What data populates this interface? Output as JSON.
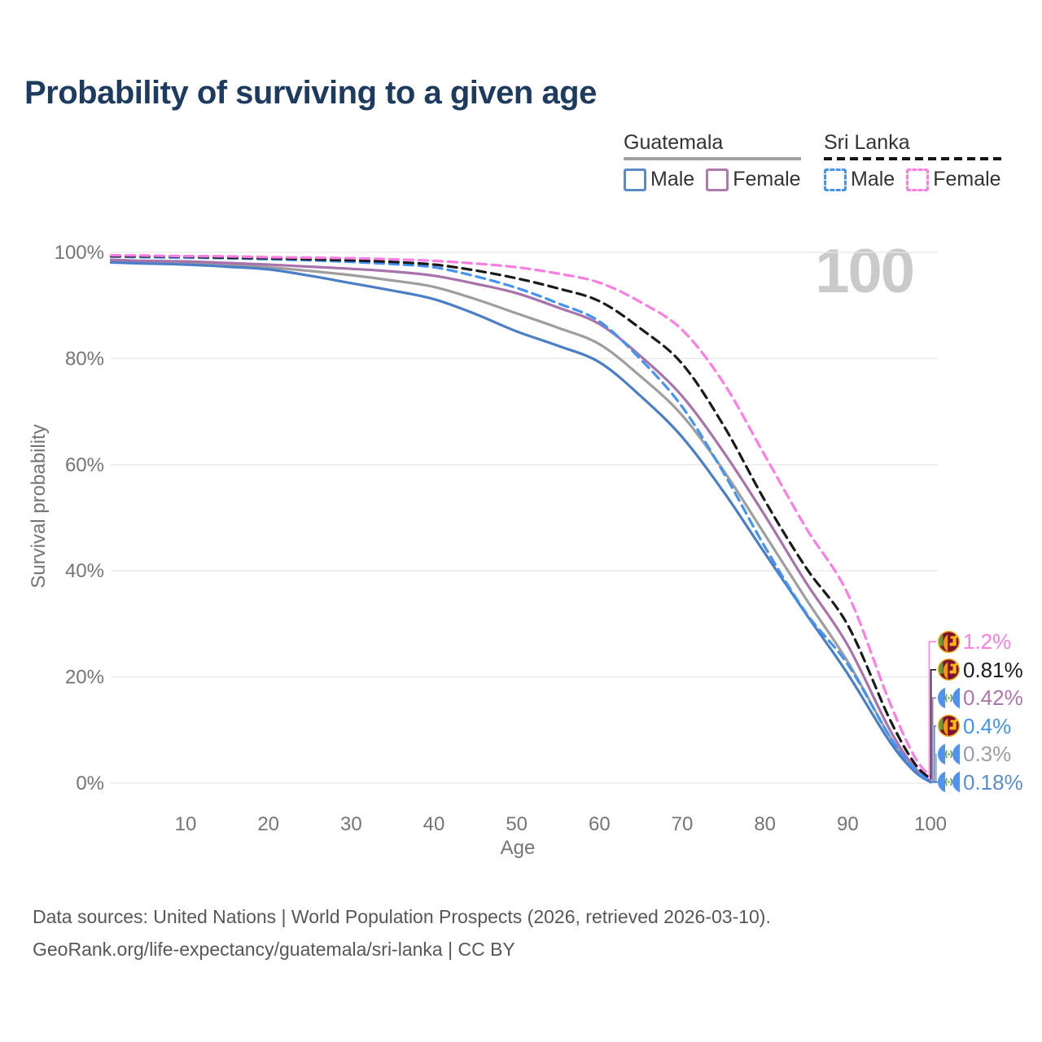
{
  "title": "Probability of surviving to a given age",
  "watermark": "100",
  "legend": {
    "guatemala": {
      "title": "Guatemala",
      "male": "Male",
      "female": "Female"
    },
    "sri_lanka": {
      "title": "Sri Lanka",
      "male": "Male",
      "female": "Female"
    }
  },
  "axes": {
    "y_title": "Survival probability",
    "x_title": "Age",
    "y_ticks": [
      {
        "label": "0%",
        "value": 0
      },
      {
        "label": "20%",
        "value": 20
      },
      {
        "label": "40%",
        "value": 40
      },
      {
        "label": "60%",
        "value": 60
      },
      {
        "label": "80%",
        "value": 80
      },
      {
        "label": "100%",
        "value": 100
      }
    ],
    "x_ticks": [
      {
        "label": "10",
        "value": 10
      },
      {
        "label": "20",
        "value": 20
      },
      {
        "label": "30",
        "value": 30
      },
      {
        "label": "40",
        "value": 40
      },
      {
        "label": "50",
        "value": 50
      },
      {
        "label": "60",
        "value": 60
      },
      {
        "label": "70",
        "value": 70
      },
      {
        "label": "80",
        "value": 80
      },
      {
        "label": "90",
        "value": 90
      },
      {
        "label": "100",
        "value": 100
      }
    ]
  },
  "chart_data": {
    "type": "line",
    "title": "Probability of surviving to a given age",
    "xlabel": "Age",
    "ylabel": "Survival probability",
    "xlim": [
      1,
      100
    ],
    "ylim": [
      0,
      100
    ],
    "grid": true,
    "legend_position": "top-right",
    "x": [
      1,
      5,
      10,
      15,
      20,
      25,
      30,
      35,
      40,
      45,
      50,
      55,
      60,
      65,
      70,
      75,
      80,
      85,
      90,
      95,
      98,
      100
    ],
    "series": [
      {
        "name": "Guatemala All",
        "country": "Guatemala",
        "sex": "all",
        "color": "#9e9e9e",
        "label_color": "#9aa0a6",
        "dashed": false,
        "flag": "guatemala",
        "end_label": "0.3%",
        "values": [
          98.3,
          98.1,
          98.0,
          97.7,
          97.2,
          96.5,
          95.7,
          94.7,
          93.5,
          91.2,
          88.5,
          85.8,
          82.7,
          76.6,
          69.3,
          58.9,
          46.8,
          34.6,
          22.9,
          9.0,
          2.7,
          0.3
        ]
      },
      {
        "name": "Guatemala Female",
        "country": "Guatemala",
        "sex": "female",
        "color": "#a873ab",
        "label_color": "#ad74af",
        "dashed": false,
        "flag": "guatemala",
        "end_label": "0.42%",
        "values": [
          98.6,
          98.4,
          98.3,
          98.0,
          97.7,
          97.3,
          96.9,
          96.4,
          95.6,
          94.1,
          92.3,
          89.6,
          86.5,
          80.4,
          72.9,
          62.4,
          50.4,
          37.7,
          26.0,
          10.3,
          3.1,
          0.42
        ]
      },
      {
        "name": "Guatemala Male",
        "country": "Guatemala",
        "sex": "male",
        "color": "#4a7ec6",
        "label_color": "#5b8cd6",
        "dashed": false,
        "flag": "guatemala",
        "end_label": "0.18%",
        "values": [
          98.1,
          97.9,
          97.7,
          97.3,
          96.8,
          95.6,
          94.2,
          92.8,
          91.2,
          88.4,
          85.1,
          82.4,
          79.3,
          72.9,
          65.2,
          54.9,
          43.3,
          31.8,
          20.6,
          8.0,
          2.3,
          0.18
        ]
      },
      {
        "name": "Sri Lanka Male",
        "country": "Sri Lanka",
        "sex": "male",
        "color": "#4293f5",
        "label_color": "#4293f5",
        "dashed": true,
        "flag": "sri-lanka",
        "end_label": "0.4%",
        "values": [
          99.2,
          99.1,
          99.0,
          98.9,
          98.7,
          98.5,
          98.2,
          97.8,
          97.2,
          95.5,
          93.3,
          90.4,
          87.0,
          79.8,
          70.9,
          58.5,
          44.5,
          32.0,
          22.4,
          9.0,
          2.8,
          0.4
        ]
      },
      {
        "name": "Sri Lanka All",
        "country": "Sri Lanka",
        "sex": "all",
        "color": "#1a1a1a",
        "label_color": "#1a1a1a",
        "dashed": true,
        "flag": "sri-lanka",
        "end_label": "0.81%",
        "values": [
          99.3,
          99.25,
          99.2,
          99.0,
          98.9,
          98.7,
          98.5,
          98.2,
          97.7,
          96.6,
          95.1,
          93.2,
          90.8,
          85.6,
          79.0,
          67.4,
          53.2,
          40.5,
          29.8,
          12.3,
          3.9,
          0.81
        ]
      },
      {
        "name": "Sri Lanka Female",
        "country": "Sri Lanka",
        "sex": "female",
        "color": "#ff7ce2",
        "label_color": "#ff7ce2",
        "dashed": true,
        "flag": "sri-lanka",
        "end_label": "1.2%",
        "values": [
          99.45,
          99.4,
          99.3,
          99.25,
          99.1,
          99.0,
          98.9,
          98.7,
          98.4,
          97.9,
          97.2,
          96.0,
          94.3,
          90.6,
          85.4,
          75.4,
          61.7,
          48.0,
          35.7,
          15.5,
          5.2,
          1.2
        ]
      }
    ],
    "end_labels_top_to_bottom": [
      "1.2%",
      "0.81%",
      "0.42%",
      "0.4%",
      "0.3%",
      "0.18%"
    ]
  },
  "colors": {
    "grid": "#e8e8e8",
    "axis_text": "#757575",
    "title": "#1d3b5e",
    "watermark": "#cacaca",
    "footer": "#575757"
  },
  "footer": {
    "line1": "Data sources: United Nations | World Population Prospects (2026, retrieved 2026-03-10).",
    "line2": "GeoRank.org/life-expectancy/guatemala/sri-lanka | CC BY"
  }
}
